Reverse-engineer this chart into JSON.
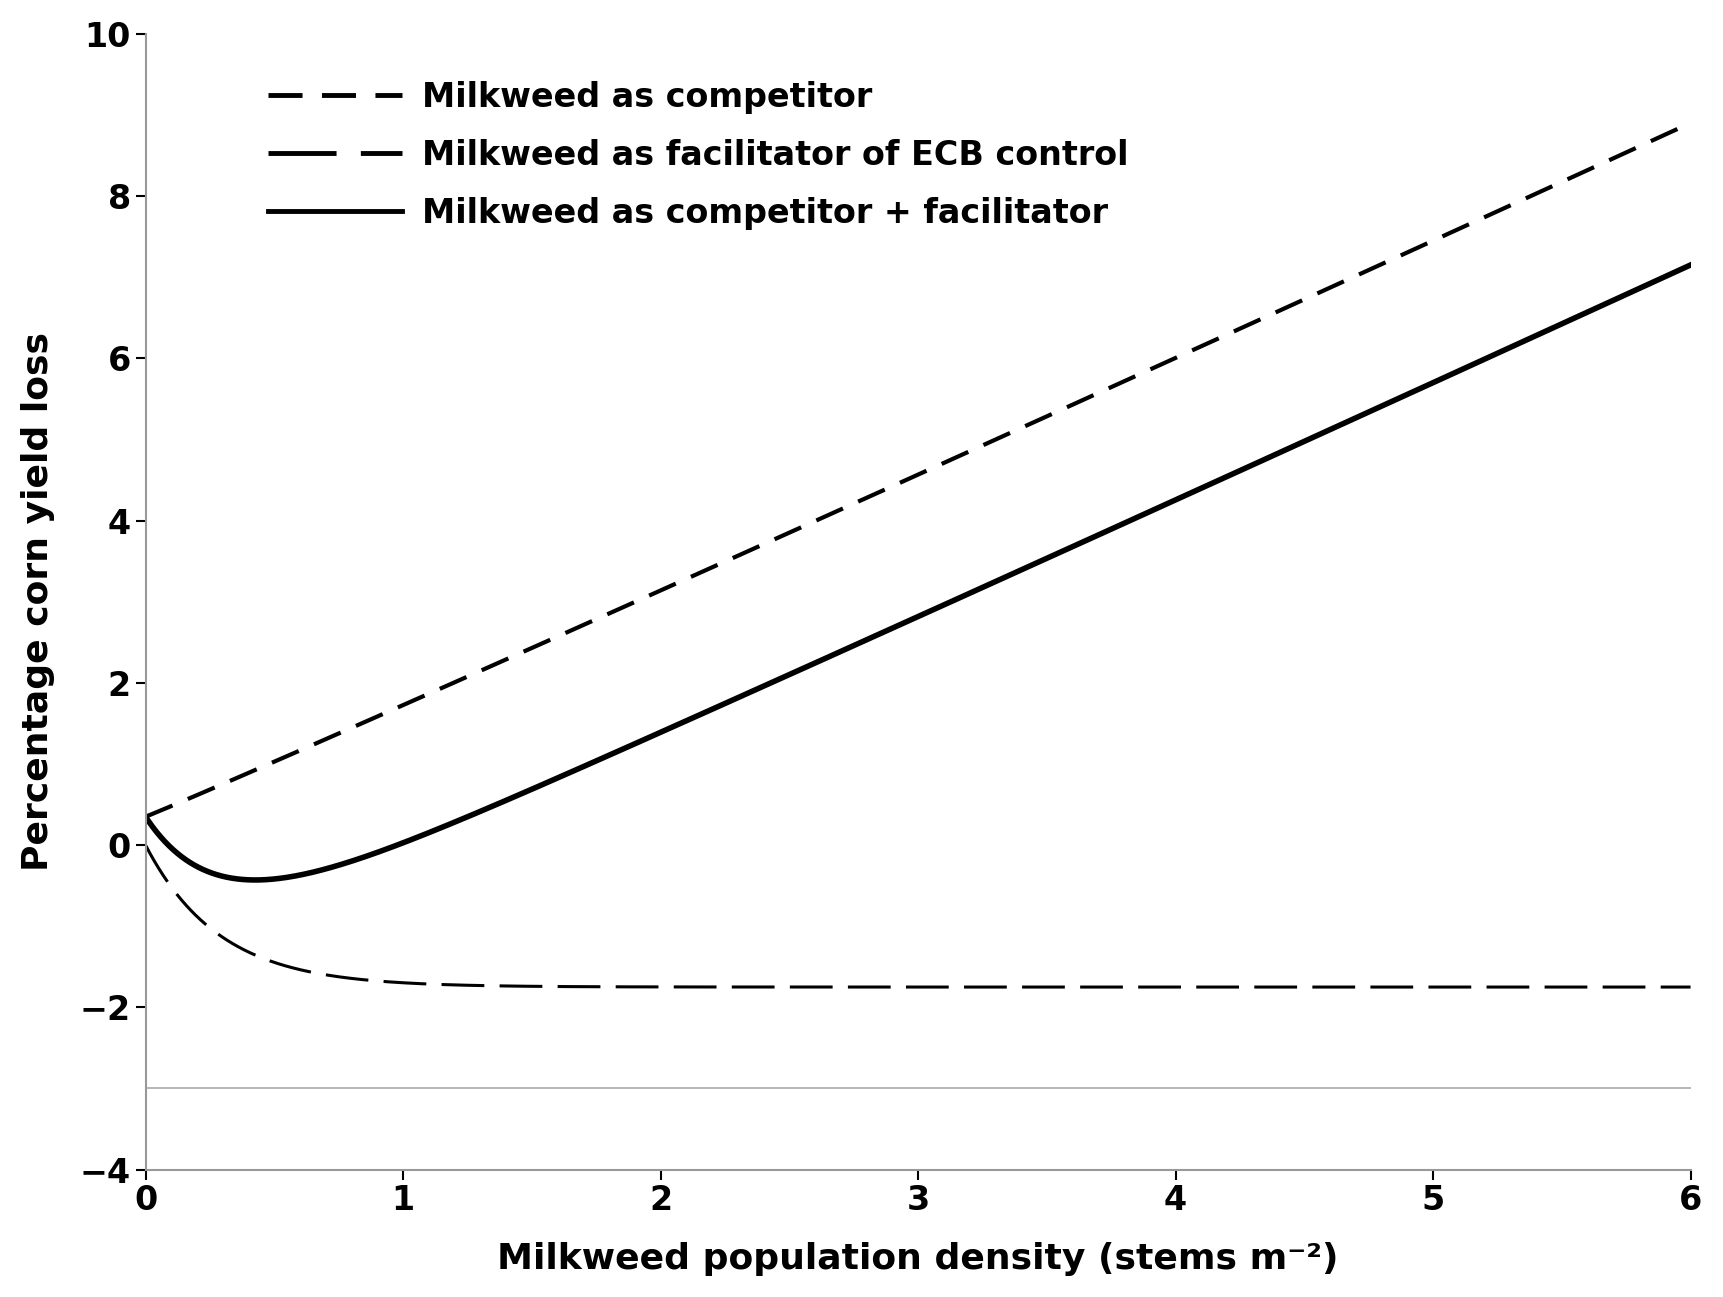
{
  "xlabel": "Milkweed population density (stems m⁻²)",
  "ylabel": "Percentage corn yield loss",
  "xlim": [
    0,
    6
  ],
  "ylim": [
    -4,
    10
  ],
  "xticks": [
    0,
    1,
    2,
    3,
    4,
    5,
    6
  ],
  "yticks": [
    -4,
    -2,
    0,
    2,
    4,
    6,
    8,
    10
  ],
  "line_color": "#000000",
  "background_color": "#ffffff",
  "legend_entries": [
    "Milkweed as competitor",
    "Milkweed as facilitator of ECB control",
    "Milkweed as competitor + facilitator"
  ],
  "competitor_intercept": 0.35,
  "competitor_coef": 1.375,
  "competitor_exp": 1.0,
  "facilitator_start": 0.0,
  "facilitator_amplitude": -1.75,
  "facilitator_decay": 3.5,
  "bottom_line_y": -3.0,
  "bottom_line_color": "#aaaaaa",
  "spine_color": "#999999",
  "competitor_dash": [
    7,
    4
  ],
  "facilitator_dash": [
    14,
    5
  ],
  "lw_competitor": 3.0,
  "lw_facilitator": 2.2,
  "lw_combined": 4.0,
  "xlabel_fontsize": 26,
  "ylabel_fontsize": 26,
  "tick_fontsize": 24,
  "legend_fontsize": 24
}
